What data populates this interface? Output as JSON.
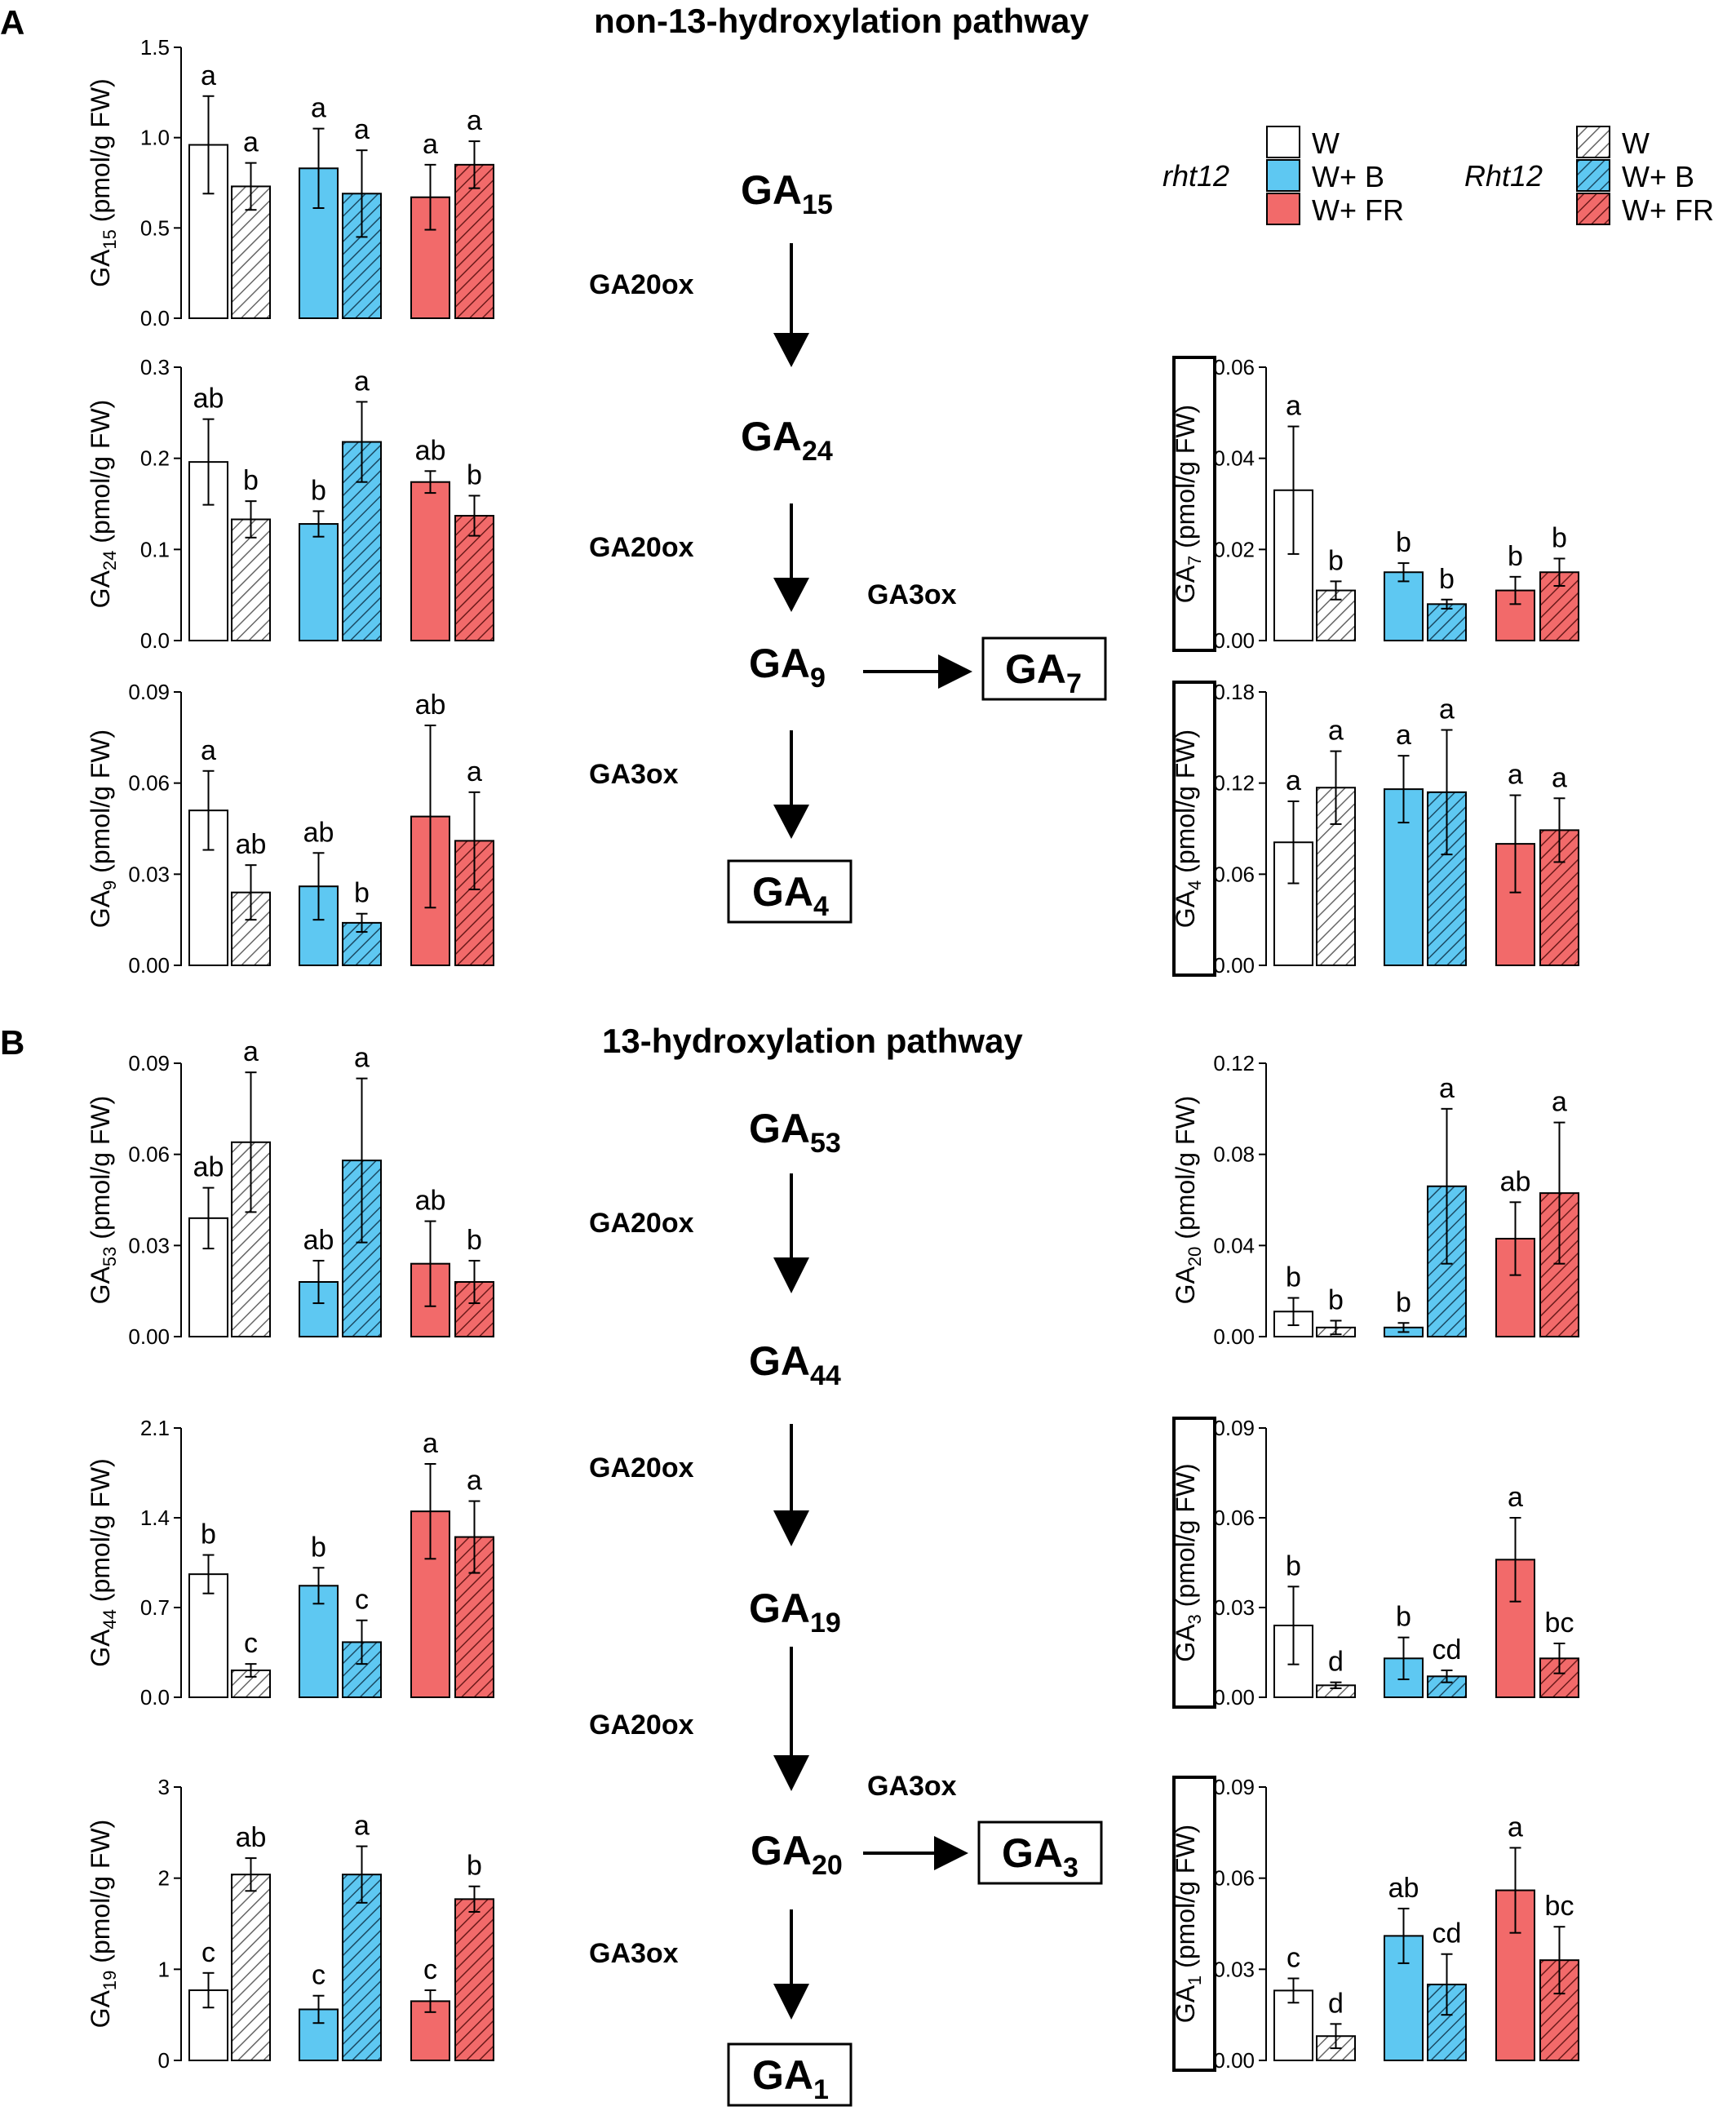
{
  "panels": {
    "A": {
      "label": "A",
      "title": "non-13-hydroxylation pathway"
    },
    "B": {
      "label": "B",
      "title": "13-hydroxylation pathway"
    }
  },
  "legend": {
    "groups": [
      {
        "genotype": "rht12",
        "style": "open"
      },
      {
        "genotype": "Rht12",
        "style": "hatched"
      }
    ],
    "entries": [
      {
        "label": "W",
        "color": "#ffffff"
      },
      {
        "label": "W+ B",
        "color": "#5ec8f2"
      },
      {
        "label": "W+ FR",
        "color": "#f26a6a"
      }
    ]
  },
  "pathway": {
    "A": {
      "nodes": [
        {
          "base": "GA",
          "sub": "15"
        },
        {
          "base": "GA",
          "sub": "24"
        },
        {
          "base": "GA",
          "sub": "9"
        },
        {
          "base": "GA",
          "sub": "4"
        },
        {
          "base": "GA",
          "sub": "7"
        }
      ],
      "enzymes": [
        "GA20ox",
        "GA20ox",
        "GA3ox",
        "GA3ox"
      ]
    },
    "B": {
      "nodes": [
        {
          "base": "GA",
          "sub": "53"
        },
        {
          "base": "GA",
          "sub": "44"
        },
        {
          "base": "GA",
          "sub": "19"
        },
        {
          "base": "GA",
          "sub": "20"
        },
        {
          "base": "GA",
          "sub": "1"
        },
        {
          "base": "GA",
          "sub": "3"
        }
      ],
      "enzymes": [
        "GA20ox",
        "GA20ox",
        "GA20ox",
        "GA3ox",
        "GA3ox"
      ]
    }
  },
  "chart_data": [
    {
      "id": "GA15",
      "type": "bar",
      "ylabel_base": "GA",
      "ylabel_sub": "15",
      "ylabel_unit": " (pmol/g FW)",
      "boxed": false,
      "ylim": [
        0,
        1.5
      ],
      "yticks": [
        "0.0",
        "0.5",
        "1.0",
        "1.5"
      ],
      "categories": [
        "rht12 W",
        "Rht12 W",
        "rht12 W+ B",
        "Rht12 W+ B",
        "rht12 W+ FR",
        "Rht12 W+ FR"
      ],
      "values": [
        0.96,
        0.73,
        0.83,
        0.69,
        0.67,
        0.85
      ],
      "errors": [
        0.27,
        0.13,
        0.22,
        0.24,
        0.18,
        0.13
      ],
      "letters": [
        "a",
        "a",
        "a",
        "a",
        "a",
        "a"
      ]
    },
    {
      "id": "GA24",
      "type": "bar",
      "ylabel_base": "GA",
      "ylabel_sub": "24",
      "ylabel_unit": " (pmol/g FW)",
      "boxed": false,
      "ylim": [
        0,
        0.3
      ],
      "yticks": [
        "0.0",
        "0.1",
        "0.2",
        "0.3"
      ],
      "categories": [
        "rht12 W",
        "Rht12 W",
        "rht12 W+ B",
        "Rht12 W+ B",
        "rht12 W+ FR",
        "Rht12 W+ FR"
      ],
      "values": [
        0.196,
        0.133,
        0.128,
        0.218,
        0.174,
        0.137
      ],
      "errors": [
        0.047,
        0.02,
        0.014,
        0.044,
        0.012,
        0.022
      ],
      "letters": [
        "ab",
        "b",
        "b",
        "a",
        "ab",
        "b"
      ]
    },
    {
      "id": "GA9",
      "type": "bar",
      "ylabel_base": "GA",
      "ylabel_sub": "9",
      "ylabel_unit": " (pmol/g FW)",
      "boxed": false,
      "ylim": [
        0,
        0.09
      ],
      "yticks": [
        "0.00",
        "0.03",
        "0.06",
        "0.09"
      ],
      "categories": [
        "rht12 W",
        "Rht12 W",
        "rht12 W+ B",
        "Rht12 W+ B",
        "rht12 W+ FR",
        "Rht12 W+ FR"
      ],
      "values": [
        0.051,
        0.024,
        0.026,
        0.014,
        0.049,
        0.041
      ],
      "errors": [
        0.013,
        0.009,
        0.011,
        0.003,
        0.03,
        0.016
      ],
      "letters": [
        "a",
        "ab",
        "ab",
        "b",
        "ab",
        "a"
      ]
    },
    {
      "id": "GA7",
      "type": "bar",
      "ylabel_base": "GA",
      "ylabel_sub": "7",
      "ylabel_unit": " (pmol/g FW)",
      "boxed": true,
      "ylim": [
        0,
        0.06
      ],
      "yticks": [
        "0.00",
        "0.02",
        "0.04",
        "0.06"
      ],
      "categories": [
        "rht12 W",
        "Rht12 W",
        "rht12 W+ B",
        "Rht12 W+ B",
        "rht12 W+ FR",
        "Rht12 W+ FR"
      ],
      "values": [
        0.033,
        0.011,
        0.015,
        0.008,
        0.011,
        0.015
      ],
      "errors": [
        0.014,
        0.002,
        0.002,
        0.001,
        0.003,
        0.003
      ],
      "letters": [
        "a",
        "b",
        "b",
        "b",
        "b",
        "b"
      ]
    },
    {
      "id": "GA4",
      "type": "bar",
      "ylabel_base": "GA",
      "ylabel_sub": "4",
      "ylabel_unit": " (pmol/g FW)",
      "boxed": true,
      "ylim": [
        0,
        0.18
      ],
      "yticks": [
        "0.00",
        "0.06",
        "0.12",
        "0.18"
      ],
      "categories": [
        "rht12 W",
        "Rht12 W",
        "rht12 W+ B",
        "Rht12 W+ B",
        "rht12 W+ FR",
        "Rht12 W+ FR"
      ],
      "values": [
        0.081,
        0.117,
        0.116,
        0.114,
        0.08,
        0.089
      ],
      "errors": [
        0.027,
        0.024,
        0.022,
        0.041,
        0.032,
        0.021
      ],
      "letters": [
        "a",
        "a",
        "a",
        "a",
        "a",
        "a"
      ]
    },
    {
      "id": "GA53",
      "type": "bar",
      "ylabel_base": "GA",
      "ylabel_sub": "53",
      "ylabel_unit": " (pmol/g FW)",
      "boxed": false,
      "ylim": [
        0,
        0.09
      ],
      "yticks": [
        "0.00",
        "0.03",
        "0.06",
        "0.09"
      ],
      "categories": [
        "rht12 W",
        "Rht12 W",
        "rht12 W+ B",
        "Rht12 W+ B",
        "rht12 W+ FR",
        "Rht12 W+ FR"
      ],
      "values": [
        0.039,
        0.064,
        0.018,
        0.058,
        0.024,
        0.018
      ],
      "errors": [
        0.01,
        0.023,
        0.007,
        0.027,
        0.014,
        0.007
      ],
      "letters": [
        "ab",
        "a",
        "ab",
        "a",
        "ab",
        "b"
      ]
    },
    {
      "id": "GA44",
      "type": "bar",
      "ylabel_base": "GA",
      "ylabel_sub": "44",
      "ylabel_unit": " (pmol/g FW)",
      "boxed": false,
      "ylim": [
        0,
        2.1
      ],
      "yticks": [
        "0.0",
        "0.7",
        "1.4",
        "2.1"
      ],
      "categories": [
        "rht12 W",
        "Rht12 W",
        "rht12 W+ B",
        "Rht12 W+ B",
        "rht12 W+ FR",
        "Rht12 W+ FR"
      ],
      "values": [
        0.96,
        0.21,
        0.87,
        0.43,
        1.45,
        1.25
      ],
      "errors": [
        0.15,
        0.05,
        0.14,
        0.17,
        0.37,
        0.28
      ],
      "letters": [
        "b",
        "c",
        "b",
        "c",
        "a",
        "a"
      ]
    },
    {
      "id": "GA19",
      "type": "bar",
      "ylabel_base": "GA",
      "ylabel_sub": "19",
      "ylabel_unit": " (pmol/g FW)",
      "boxed": false,
      "ylim": [
        0,
        3
      ],
      "yticks": [
        "0",
        "1",
        "2",
        "3"
      ],
      "categories": [
        "rht12 W",
        "Rht12 W",
        "rht12 W+ B",
        "Rht12 W+ B",
        "rht12 W+ FR",
        "Rht12 W+ FR"
      ],
      "values": [
        0.77,
        2.04,
        0.56,
        2.04,
        0.65,
        1.77
      ],
      "errors": [
        0.19,
        0.18,
        0.15,
        0.31,
        0.12,
        0.14
      ],
      "letters": [
        "c",
        "ab",
        "c",
        "a",
        "c",
        "b"
      ]
    },
    {
      "id": "GA20",
      "type": "bar",
      "ylabel_base": "GA",
      "ylabel_sub": "20",
      "ylabel_unit": " (pmol/g FW)",
      "boxed": false,
      "ylim": [
        0,
        0.12
      ],
      "yticks": [
        "0.00",
        "0.04",
        "0.08",
        "0.12"
      ],
      "categories": [
        "rht12 W",
        "Rht12 W",
        "rht12 W+ B",
        "Rht12 W+ B",
        "rht12 W+ FR",
        "Rht12 W+ FR"
      ],
      "values": [
        0.011,
        0.004,
        0.004,
        0.066,
        0.043,
        0.063
      ],
      "errors": [
        0.006,
        0.003,
        0.002,
        0.034,
        0.016,
        0.031
      ],
      "letters": [
        "b",
        "b",
        "b",
        "a",
        "ab",
        "a"
      ]
    },
    {
      "id": "GA3",
      "type": "bar",
      "ylabel_base": "GA",
      "ylabel_sub": "3",
      "ylabel_unit": " (pmol/g FW)",
      "boxed": true,
      "ylim": [
        0,
        0.09
      ],
      "yticks": [
        "0.00",
        "0.03",
        "0.06",
        "0.09"
      ],
      "categories": [
        "rht12 W",
        "Rht12 W",
        "rht12 W+ B",
        "Rht12 W+ B",
        "rht12 W+ FR",
        "Rht12 W+ FR"
      ],
      "values": [
        0.024,
        0.004,
        0.013,
        0.007,
        0.046,
        0.013
      ],
      "errors": [
        0.013,
        0.001,
        0.007,
        0.002,
        0.014,
        0.005
      ],
      "letters": [
        "b",
        "d",
        "b",
        "cd",
        "a",
        "bc"
      ]
    },
    {
      "id": "GA1",
      "type": "bar",
      "ylabel_base": "GA",
      "ylabel_sub": "1",
      "ylabel_unit": " (pmol/g FW)",
      "boxed": true,
      "ylim": [
        0,
        0.09
      ],
      "yticks": [
        "0.00",
        "0.03",
        "0.06",
        "0.09"
      ],
      "categories": [
        "rht12 W",
        "Rht12 W",
        "rht12 W+ B",
        "Rht12 W+ B",
        "rht12 W+ FR",
        "Rht12 W+ FR"
      ],
      "values": [
        0.023,
        0.008,
        0.041,
        0.025,
        0.056,
        0.033
      ],
      "errors": [
        0.004,
        0.004,
        0.009,
        0.01,
        0.014,
        0.011
      ],
      "letters": [
        "c",
        "d",
        "ab",
        "cd",
        "a",
        "bc"
      ]
    }
  ]
}
